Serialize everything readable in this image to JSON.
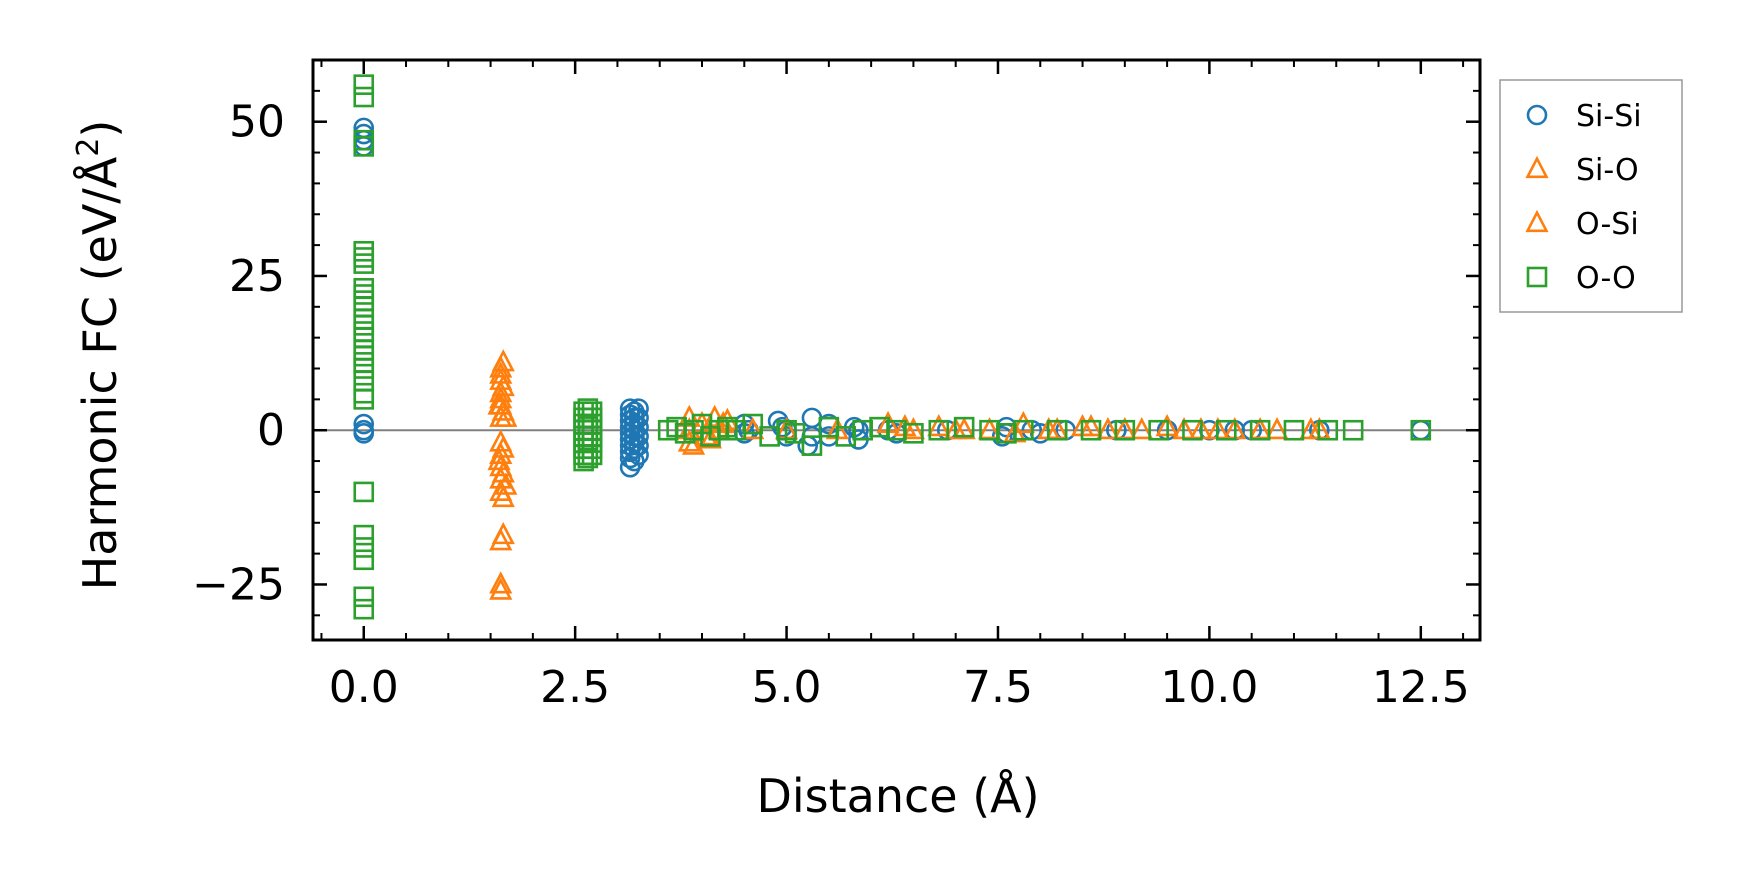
{
  "chart_data": {
    "type": "scatter",
    "title": "",
    "xlabel": "Distance (Å)",
    "ylabel_main": "Harmonic FC (eV/Å",
    "ylabel_sup": "2",
    "ylabel_close": ")",
    "xlim": [
      -0.6,
      13.2
    ],
    "ylim": [
      -34,
      60
    ],
    "xticks": [
      0,
      2.5,
      5,
      7.5,
      10,
      12.5
    ],
    "xtick_labels": [
      "0.0",
      "2.5",
      "5.0",
      "7.5",
      "10.0",
      "12.5"
    ],
    "yticks": [
      -25,
      0,
      25,
      50
    ],
    "ytick_labels": [
      "−25",
      "0",
      "25",
      "50"
    ],
    "zero_line": 0,
    "legend_position": "outside-right",
    "series": [
      {
        "name": "Si-Si",
        "marker": "circle",
        "color": "#1f77b4",
        "x": [
          0,
          0,
          0,
          0,
          0,
          0,
          0,
          3.15,
          3.15,
          3.15,
          3.15,
          3.15,
          3.15,
          3.15,
          3.15,
          3.15,
          3.15,
          3.2,
          3.2,
          3.2,
          3.2,
          3.2,
          3.2,
          3.2,
          3.2,
          3.25,
          3.25,
          3.25,
          3.25,
          3.25,
          3.25,
          4.5,
          4.55,
          4.5,
          4.9,
          5.0,
          5.0,
          4.95,
          5.3,
          5.3,
          5.25,
          5.5,
          5.5,
          5.85,
          5.85,
          5.8,
          6.2,
          6.3,
          6.9,
          7.6,
          7.6,
          7.55,
          7.9,
          8.0,
          8.3,
          8.9,
          9.5,
          10.0,
          10.3,
          10.5,
          11.3,
          12.5
        ],
        "y": [
          49,
          48,
          47,
          46,
          1,
          0,
          -0.5,
          3.5,
          2.5,
          1.5,
          0.5,
          -0.5,
          -1.5,
          -2.5,
          -3.5,
          -4.5,
          -6,
          3,
          2,
          1,
          0,
          -1,
          -2,
          -3,
          -5,
          3.5,
          2,
          0.5,
          -1,
          -2.5,
          -4,
          1,
          0,
          -0.5,
          1.5,
          0,
          -1,
          0.5,
          2,
          -1,
          -2.5,
          1,
          -1,
          0,
          -1.5,
          0.5,
          0,
          -0.5,
          0,
          -0.5,
          0.5,
          -1,
          0,
          -0.5,
          0,
          0,
          0,
          0,
          0,
          0,
          0,
          0
        ]
      },
      {
        "name": "Si-O",
        "marker": "triangle",
        "color": "#ff7f0e",
        "x": [
          1.62,
          1.62,
          1.62,
          1.62,
          1.62,
          1.62,
          1.62,
          1.62,
          1.62,
          1.62,
          1.62,
          1.62,
          1.62,
          1.62,
          1.62,
          1.65,
          1.65,
          1.65,
          1.65,
          1.65,
          1.65,
          1.65,
          3.85,
          3.85,
          3.85,
          4.0,
          4.05,
          4.15,
          4.2,
          4.25,
          4.6,
          5.0,
          6.2,
          6.5,
          6.8,
          7.1,
          7.4,
          7.8,
          8.2,
          8.5,
          8.8,
          9.2,
          9.5,
          9.9,
          10.3,
          10.8,
          11.2
        ],
        "y": [
          10,
          8,
          6,
          4,
          2,
          -2,
          -4,
          -6,
          -8,
          -10,
          -18,
          -25,
          -26,
          9,
          5,
          11,
          7,
          3,
          -3,
          -7,
          -11,
          -17,
          2,
          0,
          -2,
          1,
          -1,
          2,
          0,
          1,
          0,
          0,
          1,
          0,
          0.5,
          0,
          0,
          1,
          0,
          0.5,
          0,
          0,
          0.5,
          0,
          0,
          0,
          0
        ]
      },
      {
        "name": "O-Si",
        "marker": "triangle",
        "color": "#ff7f0e",
        "x": [
          1.6,
          1.6,
          1.68,
          1.68,
          3.9,
          4.1,
          4.3,
          5.6,
          6.4,
          7.0,
          7.7,
          8.1,
          8.6,
          9.0,
          9.7,
          10.1,
          10.6,
          11.3
        ],
        "y": [
          4,
          -5,
          2,
          -9,
          -2.5,
          -1.5,
          1.5,
          0,
          0.5,
          0,
          -0.5,
          0,
          0.5,
          0,
          0,
          0,
          0,
          0
        ]
      },
      {
        "name": "O-O",
        "marker": "square",
        "color": "#2ca02c",
        "x": [
          0,
          0,
          0,
          0,
          0,
          0,
          0,
          0,
          0,
          0,
          0,
          0,
          0,
          0,
          0,
          0,
          0,
          0,
          0,
          0,
          0,
          0,
          0,
          0,
          0,
          0,
          0,
          0,
          2.6,
          2.6,
          2.6,
          2.6,
          2.6,
          2.6,
          2.6,
          2.6,
          2.6,
          2.65,
          2.65,
          2.65,
          2.65,
          2.65,
          2.65,
          2.65,
          2.65,
          2.7,
          2.7,
          2.7,
          2.7,
          2.7,
          2.7,
          2.7,
          2.7,
          3.6,
          3.7,
          3.8,
          3.9,
          4.0,
          4.1,
          4.2,
          4.3,
          4.4,
          4.6,
          4.8,
          5.0,
          5.1,
          5.3,
          5.5,
          5.7,
          5.9,
          6.1,
          6.3,
          6.5,
          6.8,
          7.1,
          7.4,
          7.6,
          7.8,
          8.2,
          8.6,
          9.0,
          9.4,
          9.8,
          10.2,
          10.6,
          11.0,
          11.4,
          11.7,
          12.5
        ],
        "y": [
          56,
          54,
          47,
          46,
          29,
          28,
          27,
          23,
          22,
          21,
          20,
          18,
          17,
          16,
          15,
          13,
          12,
          11,
          10,
          8,
          6,
          5,
          -10,
          -17,
          -19,
          -21,
          -27,
          -29,
          3,
          2,
          1,
          0,
          -1,
          -2,
          -3,
          -4,
          -5,
          3.5,
          2,
          1,
          0,
          -1,
          -2,
          -3,
          -4.5,
          3,
          2,
          1,
          0,
          -1,
          -2,
          -3,
          -4,
          0,
          0.5,
          -0.5,
          0,
          1,
          -1,
          0,
          0.5,
          0,
          1,
          -1,
          0,
          -0.5,
          -2.5,
          0.5,
          -1,
          0,
          0.5,
          0,
          -0.5,
          0,
          0.5,
          0,
          -0.5,
          0,
          0,
          0,
          0,
          0,
          0,
          0,
          0,
          0,
          0,
          0,
          0
        ]
      }
    ]
  },
  "legend": {
    "items": [
      {
        "label": "Si-Si",
        "marker": "circle",
        "color": "#1f77b4"
      },
      {
        "label": "Si-O",
        "marker": "triangle",
        "color": "#ff7f0e"
      },
      {
        "label": "O-Si",
        "marker": "triangle",
        "color": "#ff7f0e"
      },
      {
        "label": "O-O",
        "marker": "square",
        "color": "#2ca02c"
      }
    ]
  },
  "colors": {
    "axis": "#000000",
    "zero_line": "#808080",
    "legend_border": "#999999"
  }
}
